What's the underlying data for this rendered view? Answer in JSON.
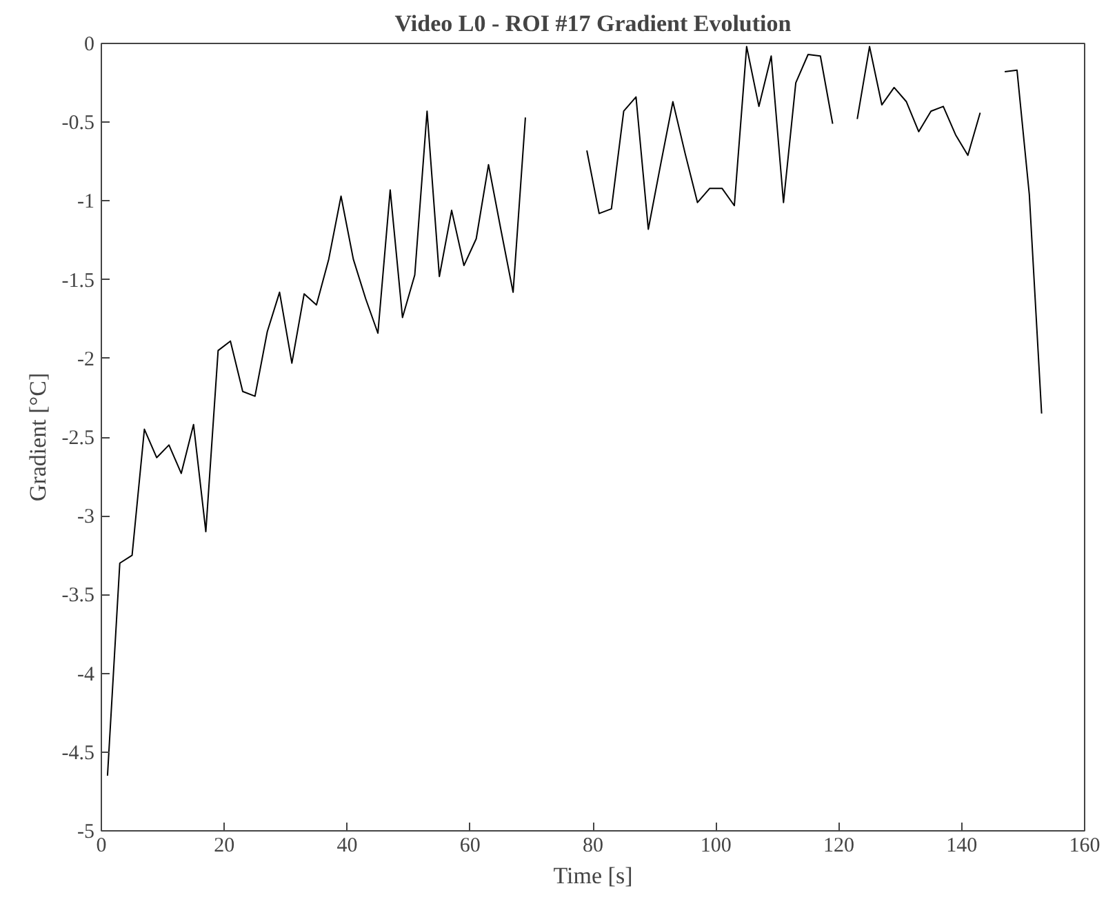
{
  "chart_data": {
    "type": "line",
    "title": "Video L0 - ROI #17 Gradient Evolution",
    "xlabel": "Time [s]",
    "ylabel": "Gradient [°C]",
    "x": [
      1,
      3,
      5,
      7,
      9,
      11,
      13,
      15,
      17,
      19,
      21,
      23,
      25,
      27,
      29,
      31,
      33,
      35,
      37,
      39,
      41,
      43,
      45,
      47,
      49,
      51,
      53,
      55,
      57,
      59,
      61,
      63,
      65,
      67,
      69,
      71,
      73,
      75,
      77,
      79,
      81,
      83,
      85,
      87,
      89,
      91,
      93,
      95,
      97,
      99,
      101,
      103,
      105,
      107,
      109,
      111,
      113,
      115,
      117,
      119,
      121,
      123,
      125,
      127,
      129,
      131,
      133,
      135,
      137,
      139,
      141,
      143,
      145,
      147,
      149,
      151,
      153
    ],
    "series": [
      {
        "color": "#000000",
        "values": [
          -4.65,
          -3.3,
          -3.25,
          -2.45,
          -2.63,
          -2.55,
          -2.73,
          -2.42,
          -3.1,
          -1.95,
          -1.89,
          -2.21,
          -2.24,
          -1.83,
          -1.58,
          -2.03,
          -1.59,
          -1.66,
          -1.37,
          -0.97,
          -1.37,
          -1.62,
          -1.84,
          -0.93,
          -1.74,
          -1.47,
          -0.43,
          -1.48,
          -1.06,
          -1.41,
          -1.24,
          -0.77,
          -1.18,
          -1.58,
          -0.47,
          null,
          null,
          null,
          null,
          -0.68,
          -1.08,
          -1.05,
          -0.43,
          -0.34,
          -1.18,
          -0.77,
          -0.37,
          -0.7,
          -1.01,
          -0.92,
          -0.92,
          -1.03,
          -0.02,
          -0.4,
          -0.08,
          -1.01,
          -0.25,
          -0.07,
          -0.08,
          -0.51,
          null,
          -0.48,
          -0.02,
          -0.39,
          -0.28,
          -0.37,
          -0.56,
          -0.43,
          -0.4,
          -0.58,
          -0.71,
          -0.44,
          null,
          -0.18,
          -0.17,
          -0.96,
          -2.35
        ]
      }
    ],
    "xlim": [
      0,
      160
    ],
    "xticks": [
      0,
      20,
      40,
      60,
      80,
      100,
      120,
      140,
      160
    ],
    "ylim": [
      -5,
      0
    ],
    "yticks": [
      -5,
      -4.5,
      -4,
      -3.5,
      -3,
      -2.5,
      -2,
      -1.5,
      -1,
      -0.5,
      0
    ],
    "grid": false,
    "marker": "none",
    "line_style": "solid"
  }
}
